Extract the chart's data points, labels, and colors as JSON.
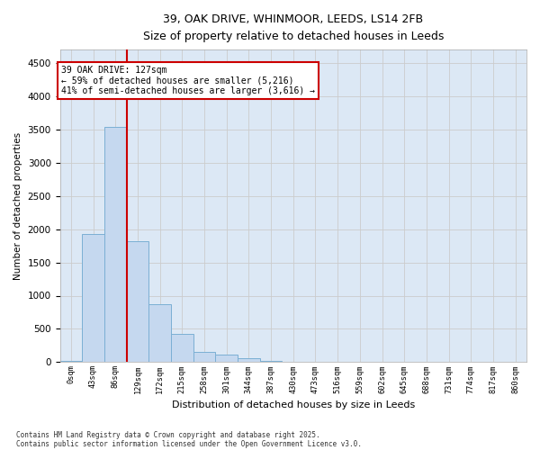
{
  "title_line1": "39, OAK DRIVE, WHINMOOR, LEEDS, LS14 2FB",
  "title_line2": "Size of property relative to detached houses in Leeds",
  "xlabel": "Distribution of detached houses by size in Leeds",
  "ylabel": "Number of detached properties",
  "bar_labels": [
    "0sqm",
    "43sqm",
    "86sqm",
    "129sqm",
    "172sqm",
    "215sqm",
    "258sqm",
    "301sqm",
    "344sqm",
    "387sqm",
    "430sqm",
    "473sqm",
    "516sqm",
    "559sqm",
    "602sqm",
    "645sqm",
    "688sqm",
    "731sqm",
    "774sqm",
    "817sqm",
    "860sqm"
  ],
  "bar_values": [
    15,
    1930,
    3540,
    1820,
    870,
    430,
    160,
    120,
    60,
    20,
    5,
    0,
    0,
    0,
    0,
    0,
    0,
    0,
    0,
    0,
    0
  ],
  "bar_color": "#c5d8ef",
  "bar_edge_color": "#7bafd4",
  "property_sqm": 127,
  "annotation_text": "39 OAK DRIVE: 127sqm\n← 59% of detached houses are smaller (5,216)\n41% of semi-detached houses are larger (3,616) →",
  "annotation_box_color": "#ffffff",
  "annotation_box_edge_color": "#cc0000",
  "line_color": "#cc0000",
  "ylim_max": 4700,
  "ytick_max": 4500,
  "ytick_step": 500,
  "grid_color": "#cccccc",
  "plot_bg_color": "#dce8f5",
  "fig_bg_color": "#ffffff",
  "footer_line1": "Contains HM Land Registry data © Crown copyright and database right 2025.",
  "footer_line2": "Contains public sector information licensed under the Open Government Licence v3.0."
}
